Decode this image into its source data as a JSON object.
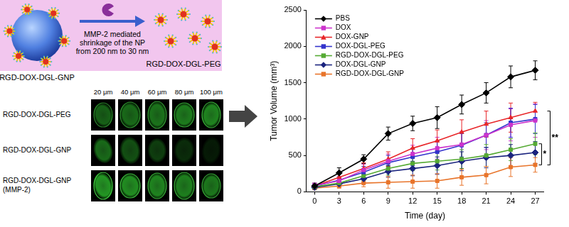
{
  "schematic": {
    "left_label": "RGD-DOX-DGL-GNP",
    "arrow_label": [
      "MMP-2 mediated",
      "shrinkage of the NP",
      "from 200 nm to 30 nm"
    ],
    "right_label": "RGD-DOX-DGL-PEG"
  },
  "microscopy": {
    "columns": [
      "20 μm",
      "40 μm",
      "60 μm",
      "80 μm",
      "100 μm"
    ],
    "rows": [
      {
        "label": "RGD-DOX-DGL-PEG"
      },
      {
        "label": "RGD-DOX-DGL-GNP"
      },
      {
        "label": "RGD-DOX-DGL-GNP",
        "sublabel": "(MMP-2)"
      }
    ]
  },
  "chart_data": {
    "type": "line",
    "x_label": "Time (day)",
    "y_label": "Tumor Volume (mm³)",
    "x": [
      0,
      3,
      6,
      9,
      12,
      15,
      18,
      21,
      24,
      27
    ],
    "xlim": [
      -1,
      28
    ],
    "xticks": [
      0,
      3,
      6,
      9,
      12,
      15,
      18,
      21,
      24,
      27
    ],
    "ylim": [
      0,
      2500
    ],
    "yticks": [
      0,
      500,
      1000,
      1500,
      2000,
      2500
    ],
    "grid": false,
    "legend": "upper left",
    "series": [
      {
        "name": "PBS",
        "color": "#000000",
        "marker": "diamond",
        "values": [
          80,
          260,
          450,
          800,
          940,
          1020,
          1200,
          1360,
          1580,
          1670
        ],
        "errors": [
          40,
          70,
          60,
          90,
          100,
          150,
          130,
          140,
          150,
          130
        ]
      },
      {
        "name": "DOX",
        "color": "#cc33cc",
        "marker": "square",
        "values": [
          90,
          150,
          300,
          420,
          520,
          600,
          650,
          780,
          920,
          980
        ],
        "errors": [
          30,
          50,
          80,
          100,
          120,
          150,
          180,
          200,
          220,
          230
        ]
      },
      {
        "name": "DOX-GNP",
        "color": "#e8262a",
        "marker": "triangle",
        "values": [
          80,
          200,
          320,
          450,
          600,
          700,
          820,
          930,
          1020,
          1110
        ],
        "errors": [
          30,
          60,
          80,
          100,
          130,
          150,
          170,
          180,
          200,
          120
        ]
      },
      {
        "name": "DOX-DGL-PEG",
        "color": "#3333cc",
        "marker": "square",
        "values": [
          80,
          160,
          270,
          400,
          480,
          550,
          640,
          780,
          950,
          1000
        ],
        "errors": [
          30,
          50,
          80,
          100,
          120,
          150,
          160,
          170,
          200,
          200
        ]
      },
      {
        "name": "RGD-DOX-DGL-PEG",
        "color": "#55aa33",
        "marker": "square",
        "values": [
          70,
          120,
          220,
          320,
          390,
          420,
          450,
          500,
          580,
          660
        ],
        "errors": [
          20,
          40,
          70,
          90,
          100,
          120,
          130,
          150,
          150,
          150
        ]
      },
      {
        "name": "DOX-DGL-GNP",
        "color": "#1a237e",
        "marker": "diamond",
        "values": [
          60,
          110,
          180,
          280,
          320,
          360,
          420,
          470,
          500,
          540
        ],
        "errors": [
          20,
          40,
          60,
          80,
          100,
          120,
          130,
          140,
          150,
          150
        ]
      },
      {
        "name": "RGD-DOX-DGL-GNP",
        "color": "#e8742a",
        "marker": "square",
        "values": [
          50,
          80,
          120,
          130,
          140,
          150,
          200,
          230,
          340,
          370
        ],
        "errors": [
          20,
          30,
          50,
          80,
          90,
          100,
          110,
          120,
          130,
          100
        ]
      }
    ],
    "annotations": [
      {
        "text": "**",
        "series": [
          "DOX-GNP",
          "RGD-DOX-DGL-GNP"
        ]
      },
      {
        "text": "*",
        "series": [
          "RGD-DOX-DGL-PEG",
          "RGD-DOX-DGL-GNP"
        ]
      }
    ]
  }
}
